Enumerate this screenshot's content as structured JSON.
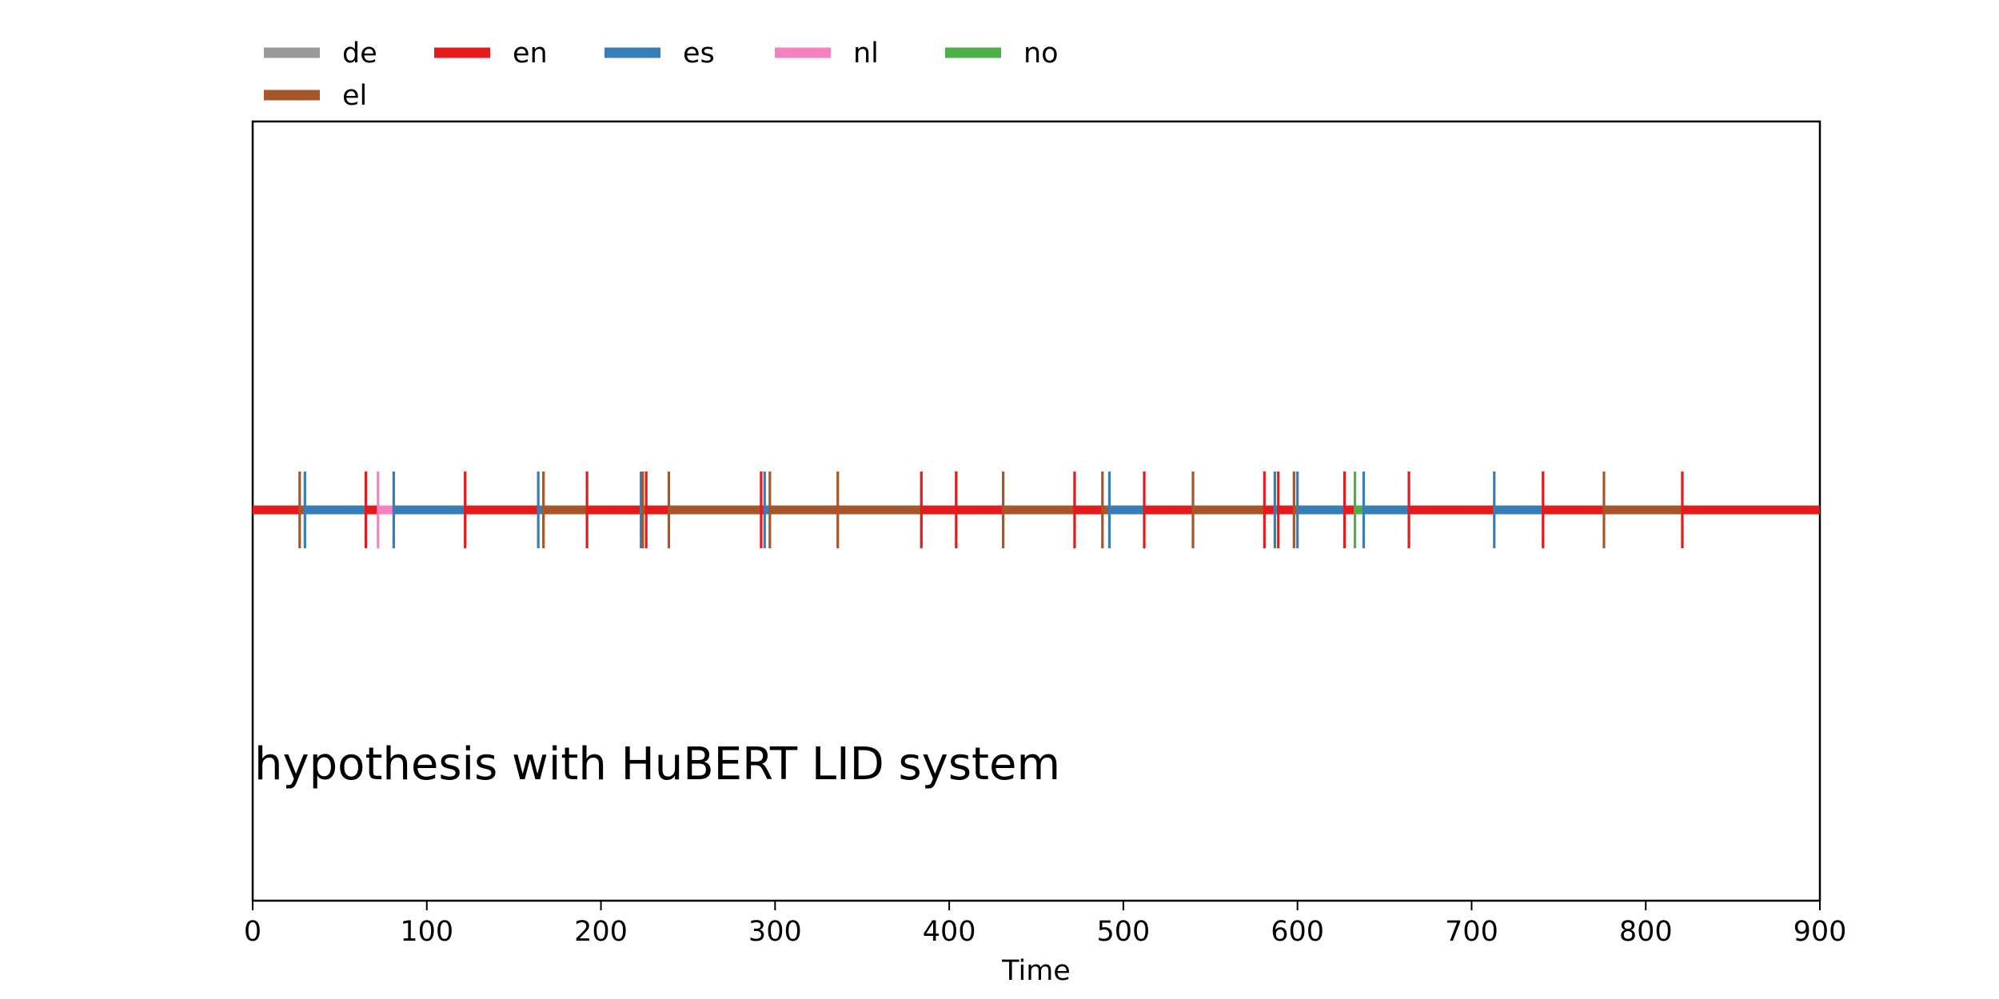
{
  "chart_data": {
    "type": "timeline",
    "xlabel": "Time",
    "xlim": [
      0,
      900
    ],
    "xticks": [
      0,
      100,
      200,
      300,
      400,
      500,
      600,
      700,
      800,
      900
    ],
    "grid": false,
    "legend_position": "top-left, above axes",
    "annotation": "hypothesis with HuBERT LID system",
    "legend": [
      {
        "label": "de",
        "color": "#999999"
      },
      {
        "label": "en",
        "color": "#e41a1c"
      },
      {
        "label": "es",
        "color": "#377eb8"
      },
      {
        "label": "nl",
        "color": "#f781bf"
      },
      {
        "label": "no",
        "color": "#4daf4a"
      },
      {
        "label": "el",
        "color": "#a65628"
      }
    ],
    "segments": [
      {
        "lang": "en",
        "start": 0,
        "end": 27
      },
      {
        "lang": "el",
        "start": 27,
        "end": 30
      },
      {
        "lang": "es",
        "start": 30,
        "end": 65
      },
      {
        "lang": "en",
        "start": 65,
        "end": 72
      },
      {
        "lang": "nl",
        "start": 72,
        "end": 81
      },
      {
        "lang": "es",
        "start": 81,
        "end": 122
      },
      {
        "lang": "en",
        "start": 122,
        "end": 164
      },
      {
        "lang": "es",
        "start": 164,
        "end": 167
      },
      {
        "lang": "el",
        "start": 167,
        "end": 192
      },
      {
        "lang": "en",
        "start": 192,
        "end": 223
      },
      {
        "lang": "es",
        "start": 223,
        "end": 224
      },
      {
        "lang": "el",
        "start": 224,
        "end": 226
      },
      {
        "lang": "en",
        "start": 226,
        "end": 239
      },
      {
        "lang": "el",
        "start": 239,
        "end": 292
      },
      {
        "lang": "en",
        "start": 292,
        "end": 294
      },
      {
        "lang": "es",
        "start": 294,
        "end": 297
      },
      {
        "lang": "el",
        "start": 297,
        "end": 336
      },
      {
        "lang": "el",
        "start": 336,
        "end": 384
      },
      {
        "lang": "en",
        "start": 384,
        "end": 404
      },
      {
        "lang": "en",
        "start": 404,
        "end": 431
      },
      {
        "lang": "el",
        "start": 431,
        "end": 472
      },
      {
        "lang": "en",
        "start": 472,
        "end": 488
      },
      {
        "lang": "el",
        "start": 488,
        "end": 492
      },
      {
        "lang": "es",
        "start": 492,
        "end": 512
      },
      {
        "lang": "en",
        "start": 512,
        "end": 540
      },
      {
        "lang": "el",
        "start": 540,
        "end": 581
      },
      {
        "lang": "en",
        "start": 581,
        "end": 587
      },
      {
        "lang": "es",
        "start": 587,
        "end": 589
      },
      {
        "lang": "en",
        "start": 589,
        "end": 598
      },
      {
        "lang": "el",
        "start": 598,
        "end": 600
      },
      {
        "lang": "es",
        "start": 600,
        "end": 627
      },
      {
        "lang": "en",
        "start": 627,
        "end": 633
      },
      {
        "lang": "no",
        "start": 633,
        "end": 638
      },
      {
        "lang": "es",
        "start": 638,
        "end": 664
      },
      {
        "lang": "en",
        "start": 664,
        "end": 713
      },
      {
        "lang": "es",
        "start": 713,
        "end": 741
      },
      {
        "lang": "en",
        "start": 741,
        "end": 776
      },
      {
        "lang": "el",
        "start": 776,
        "end": 821
      },
      {
        "lang": "en",
        "start": 821,
        "end": 900
      }
    ]
  }
}
